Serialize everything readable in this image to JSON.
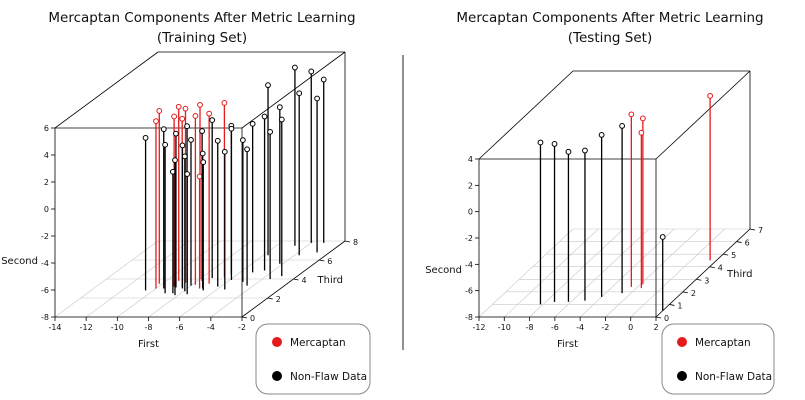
{
  "legend": {
    "mercaptan": "Mercaptan",
    "nonflaw": "Non-Flaw Data"
  },
  "colors": {
    "mercaptan": "#e41a1c",
    "nonflaw": "#000000",
    "box": "#000000",
    "grid": "#c8c8c8"
  },
  "chart_data": [
    {
      "type": "scatter",
      "projection": "3d",
      "title": "Mercaptan Components After Metric Learning",
      "subtitle": "(Training Set)",
      "xlabel": "First",
      "ylabel": "Third",
      "zlabel": "Second",
      "xlim": [
        -14,
        -2
      ],
      "ylim": [
        0,
        8
      ],
      "zlim": [
        -8,
        6
      ],
      "xticks": [
        -14,
        -12,
        -10,
        -8,
        -6,
        -4,
        -2
      ],
      "yticks": [
        0,
        2,
        4,
        6,
        8
      ],
      "zticks": [
        -8,
        -6,
        -4,
        -2,
        0,
        2,
        4,
        6
      ],
      "grid": true,
      "legend_position": "bottom-right",
      "series": [
        {
          "name": "Mercaptan",
          "points": [
            {
              "x": -10.2,
              "y": 3.5,
              "z": 4.8
            },
            {
              "x": -10.0,
              "y": 3.0,
              "z": 4.4
            },
            {
              "x": -9.2,
              "y": 3.8,
              "z": 4.9
            },
            {
              "x": -9.0,
              "y": 3.2,
              "z": 4.6
            },
            {
              "x": -8.6,
              "y": 3.6,
              "z": 4.9
            },
            {
              "x": -8.4,
              "y": 3.1,
              "z": 4.5
            },
            {
              "x": -8.0,
              "y": 4.0,
              "z": 4.9
            },
            {
              "x": -7.8,
              "y": 3.4,
              "z": 4.5
            },
            {
              "x": -7.2,
              "y": 3.0,
              "z": 0.3
            },
            {
              "x": -7.0,
              "y": 3.5,
              "z": 4.6
            },
            {
              "x": -6.6,
              "y": 4.2,
              "z": 4.9
            }
          ]
        },
        {
          "name": "Non-Flaw Data",
          "points": [
            {
              "x": -10.5,
              "y": 2.8,
              "z": 3.3
            },
            {
              "x": -9.5,
              "y": 3.0,
              "z": 3.8
            },
            {
              "x": -9.0,
              "y": 2.5,
              "z": 3.0
            },
            {
              "x": -8.8,
              "y": 3.1,
              "z": 3.4
            },
            {
              "x": -8.5,
              "y": 2.5,
              "z": 1.0
            },
            {
              "x": -8.5,
              "y": 3.6,
              "z": 3.6
            },
            {
              "x": -8.3,
              "y": 3.0,
              "z": 2.6
            },
            {
              "x": -8.2,
              "y": 2.3,
              "z": 2.0
            },
            {
              "x": -8.0,
              "y": 3.3,
              "z": 2.8
            },
            {
              "x": -7.9,
              "y": 2.7,
              "z": 2.0
            },
            {
              "x": -7.7,
              "y": 3.8,
              "z": 3.1
            },
            {
              "x": -7.5,
              "y": 2.4,
              "z": 0.9
            },
            {
              "x": -7.3,
              "y": 4.1,
              "z": 3.7
            },
            {
              "x": -7.0,
              "y": 3.0,
              "z": 2.0
            },
            {
              "x": -6.8,
              "y": 2.8,
              "z": 1.5
            },
            {
              "x": -6.4,
              "y": 4.5,
              "z": 3.0
            },
            {
              "x": -6.2,
              "y": 3.2,
              "z": 2.8
            },
            {
              "x": -5.9,
              "y": 3.9,
              "z": 3.2
            },
            {
              "x": -5.7,
              "y": 6.5,
              "z": 4.6
            },
            {
              "x": -5.5,
              "y": 2.9,
              "z": 2.2
            },
            {
              "x": -5.2,
              "y": 4.7,
              "z": 3.0
            },
            {
              "x": -5.0,
              "y": 3.7,
              "z": 2.5
            },
            {
              "x": -4.8,
              "y": 7.5,
              "z": 5.2
            },
            {
              "x": -4.6,
              "y": 4.9,
              "z": 3.4
            },
            {
              "x": -4.4,
              "y": 3.3,
              "z": 2.1
            },
            {
              "x": -4.2,
              "y": 5.6,
              "z": 3.6
            },
            {
              "x": -4.0,
              "y": 7.8,
              "z": 4.7
            },
            {
              "x": -3.7,
              "y": 6.5,
              "z": 4.0
            },
            {
              "x": -3.5,
              "y": 4.0,
              "z": 2.9
            },
            {
              "x": -3.2,
              "y": 7.8,
              "z": 4.1
            },
            {
              "x": -3.0,
              "y": 4.3,
              "z": 3.6
            },
            {
              "x": -2.8,
              "y": 6.8,
              "z": 3.4
            }
          ]
        }
      ]
    },
    {
      "type": "scatter",
      "projection": "3d",
      "title": "Mercaptan Components After Metric Learning",
      "subtitle": "(Testing Set)",
      "xlabel": "First",
      "ylabel": "Third",
      "zlabel": "Second",
      "xlim": [
        -12,
        2
      ],
      "ylim": [
        0,
        7
      ],
      "zlim": [
        -8,
        4
      ],
      "xticks": [
        -12,
        -10,
        -8,
        -6,
        -4,
        -2,
        0,
        2
      ],
      "yticks": [
        0,
        1,
        2,
        3,
        4,
        5,
        6,
        7
      ],
      "zticks": [
        -8,
        -6,
        -4,
        -2,
        0,
        2,
        4
      ],
      "grid": true,
      "legend_position": "bottom-right",
      "series": [
        {
          "name": "Mercaptan",
          "points": [
            {
              "x": -2.5,
              "y": 2.4,
              "z": 5.1
            },
            {
              "x": -1.8,
              "y": 2.6,
              "z": 4.6
            },
            {
              "x": -1.6,
              "y": 2.3,
              "z": 3.8
            },
            {
              "x": 1.5,
              "y": 4.5,
              "z": 4.5
            }
          ]
        },
        {
          "name": "Non-Flaw Data",
          "points": [
            {
              "x": -8.2,
              "y": 1.0,
              "z": 4.3
            },
            {
              "x": -7.3,
              "y": 1.2,
              "z": 4.0
            },
            {
              "x": -6.2,
              "y": 1.2,
              "z": 3.4
            },
            {
              "x": -5.0,
              "y": 1.3,
              "z": 3.4
            },
            {
              "x": -4.0,
              "y": 1.6,
              "z": 4.3
            },
            {
              "x": -2.7,
              "y": 1.9,
              "z": 4.7
            },
            {
              "x": 2.0,
              "y": 0.5,
              "z": -2.4
            }
          ]
        }
      ]
    }
  ]
}
